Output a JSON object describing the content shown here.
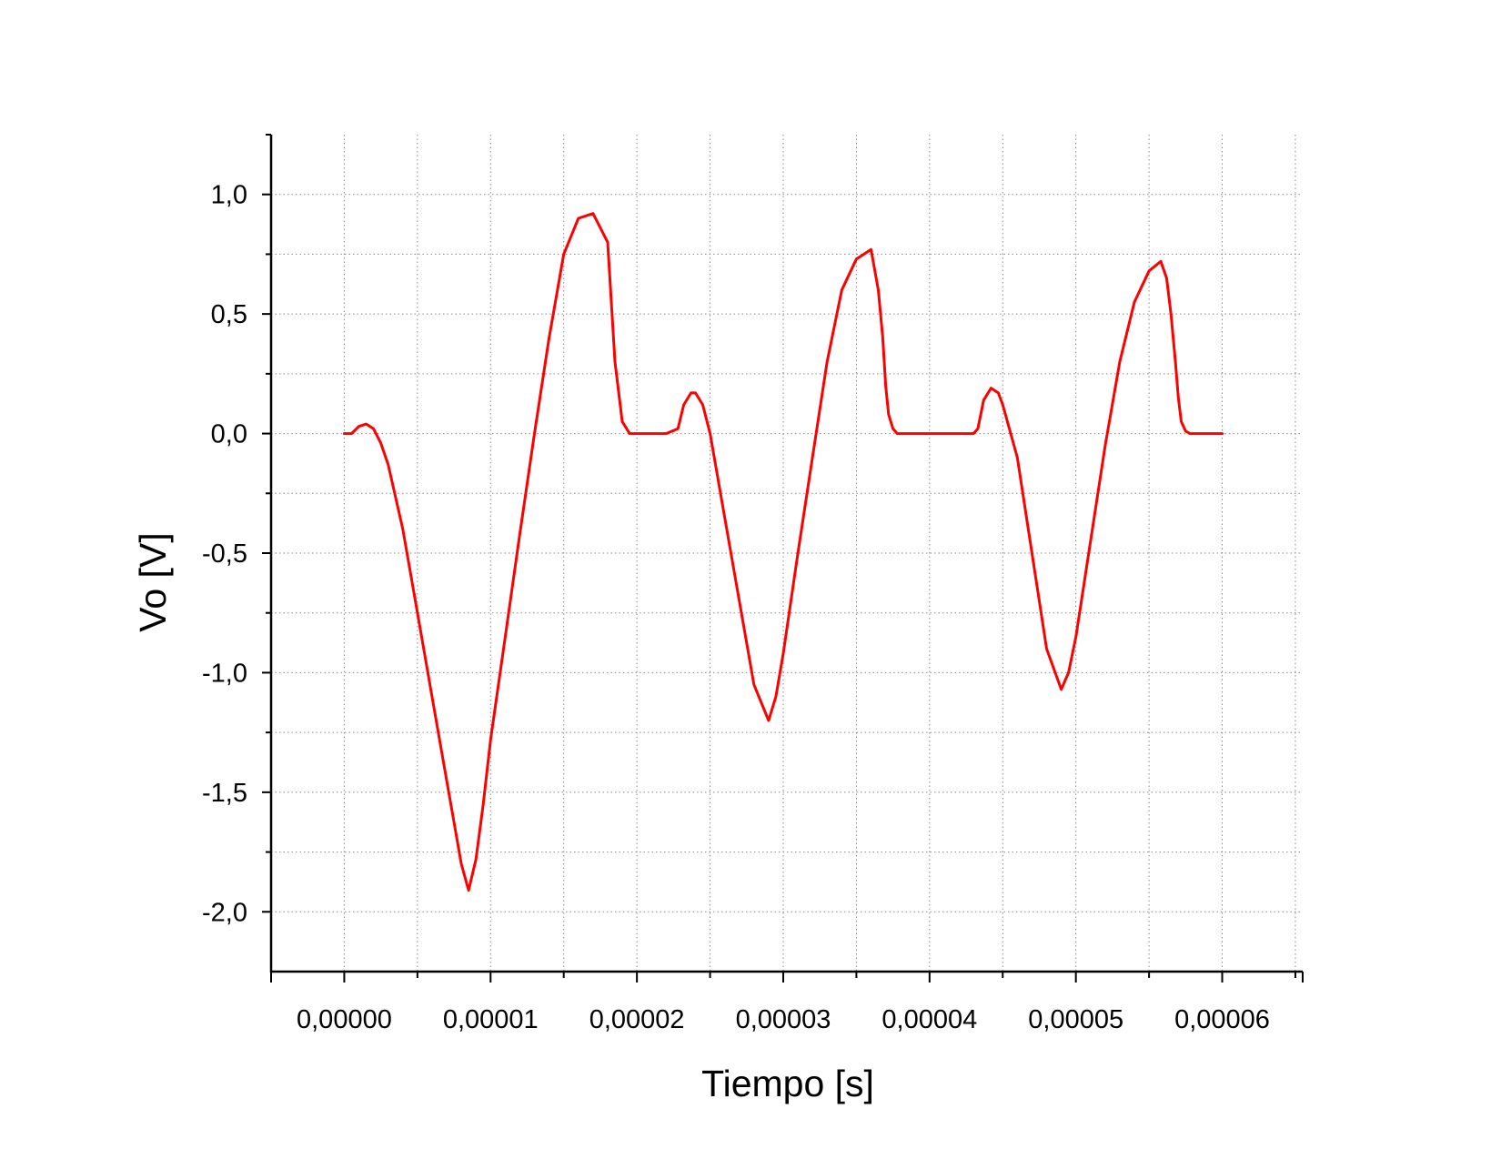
{
  "chart_data": {
    "type": "line",
    "title": "",
    "xlabel": "Tiempo [s]",
    "ylabel": "Vo [V]",
    "xlim": [
      -5e-06,
      6.55e-05
    ],
    "ylim": [
      -2.25,
      1.25
    ],
    "x_ticks": [
      0,
      1e-05,
      2e-05,
      3e-05,
      4e-05,
      5e-05,
      6e-05
    ],
    "x_tick_labels": [
      "0,00000",
      "0,00001",
      "0,00002",
      "0,00003",
      "0,00004",
      "0,00005",
      "0,00006"
    ],
    "y_ticks": [
      1.0,
      0.5,
      0.0,
      -0.5,
      -1.0,
      -1.5,
      -2.0
    ],
    "y_tick_labels": [
      "1,0",
      "0,5",
      "0,0",
      "-0,5",
      "-1,0",
      "-1,5",
      "-2,0"
    ],
    "grid": true,
    "grid_style": "dotted",
    "series_color": "#ff0000",
    "series": [
      {
        "x": [
          0,
          5e-07,
          1e-06,
          1.5e-06,
          2e-06,
          2.5e-06,
          3e-06,
          4e-06,
          5e-06,
          6e-06,
          7e-06,
          8e-06,
          8.5e-06,
          9e-06,
          9.5e-06,
          1e-05,
          1.1e-05,
          1.2e-05,
          1.3e-05,
          1.4e-05,
          1.5e-05,
          1.6e-05,
          1.7e-05,
          1.8e-05,
          1.85e-05,
          1.9e-05,
          1.93e-05,
          1.95e-05,
          1.98e-05,
          2e-05,
          2.05e-05,
          2.1e-05,
          2.2e-05,
          2.28e-05,
          2.32e-05,
          2.37e-05,
          2.4e-05,
          2.45e-05,
          2.5e-05,
          2.6e-05,
          2.7e-05,
          2.8e-05,
          2.9e-05,
          2.95e-05,
          3e-05,
          3.1e-05,
          3.2e-05,
          3.3e-05,
          3.4e-05,
          3.5e-05,
          3.6e-05,
          3.65e-05,
          3.68e-05,
          3.7e-05,
          3.72e-05,
          3.75e-05,
          3.78e-05,
          3.8e-05,
          3.85e-05,
          3.9e-05,
          4e-05,
          4.1e-05,
          4.2e-05,
          4.3e-05,
          4.33e-05,
          4.37e-05,
          4.42e-05,
          4.47e-05,
          4.5e-05,
          4.6e-05,
          4.7e-05,
          4.8e-05,
          4.9e-05,
          4.95e-05,
          5e-05,
          5.1e-05,
          5.2e-05,
          5.3e-05,
          5.4e-05,
          5.5e-05,
          5.58e-05,
          5.62e-05,
          5.65e-05,
          5.68e-05,
          5.7e-05,
          5.72e-05,
          5.75e-05,
          5.78e-05,
          5.8e-05,
          5.9e-05,
          6e-05
        ],
        "y": [
          0,
          0,
          0.03,
          0.04,
          0.02,
          -0.04,
          -0.13,
          -0.4,
          -0.75,
          -1.1,
          -1.45,
          -1.8,
          -1.91,
          -1.78,
          -1.55,
          -1.28,
          -0.85,
          -0.42,
          0.0,
          0.4,
          0.75,
          0.9,
          0.92,
          0.8,
          0.3,
          0.05,
          0.02,
          0.0,
          0.0,
          0.0,
          0.0,
          0.0,
          0.0,
          0.02,
          0.12,
          0.17,
          0.17,
          0.12,
          0.0,
          -0.35,
          -0.7,
          -1.05,
          -1.2,
          -1.1,
          -0.92,
          -0.5,
          -0.1,
          0.3,
          0.6,
          0.73,
          0.77,
          0.6,
          0.4,
          0.2,
          0.08,
          0.02,
          0.0,
          0.0,
          0.0,
          0.0,
          0.0,
          0.0,
          0.0,
          0.0,
          0.02,
          0.14,
          0.19,
          0.17,
          0.12,
          -0.1,
          -0.5,
          -0.9,
          -1.07,
          -1.0,
          -0.85,
          -0.45,
          -0.05,
          0.3,
          0.55,
          0.68,
          0.72,
          0.65,
          0.5,
          0.3,
          0.15,
          0.05,
          0.01,
          0.0,
          0.0,
          0.0,
          0.0
        ]
      }
    ]
  }
}
